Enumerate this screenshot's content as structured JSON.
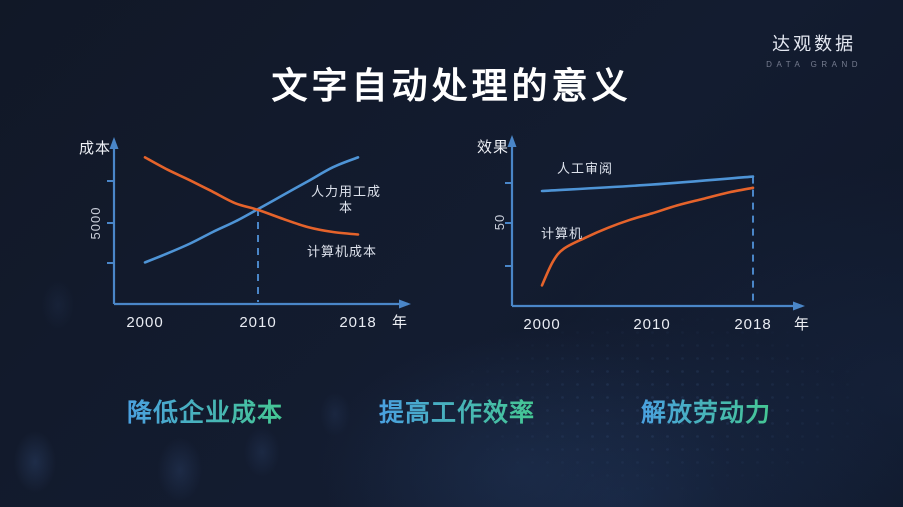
{
  "page": {
    "title": "文字自动处理的意义",
    "logo": {
      "name": "达观数据",
      "tagline": "DATA GRAND"
    },
    "benefits": [
      "降低企业成本",
      "提高工作效率",
      "解放劳动力"
    ],
    "colors": {
      "background": "#121a2c",
      "title": "#ffffff",
      "axis_blue": "#4a86c8",
      "line_blue": "#4e94d6",
      "line_orange": "#e5632b",
      "benefit_gradient_start": "#4aa0e0",
      "benefit_gradient_end": "#45c793",
      "tick_label": "#e9ecf3",
      "chart_label": "#dde2ec"
    }
  },
  "chart_data": [
    {
      "type": "line",
      "xlabel": "年",
      "ylabel": "成本",
      "x_tick_labels": [
        "2000",
        "2010",
        "2018"
      ],
      "y_tick_labels": [
        "5000"
      ],
      "x_range": [
        2000,
        2018
      ],
      "grid": false,
      "legend_position": "inline-annotations",
      "series": [
        {
          "name": "人力用工成本",
          "color": "#4e94d6",
          "x": [
            2000,
            2002,
            2004,
            2006,
            2008,
            2010,
            2012,
            2014,
            2016,
            2018
          ],
          "values": [
            2600,
            3150,
            3750,
            4450,
            5100,
            5850,
            6700,
            7550,
            8400,
            9000
          ]
        },
        {
          "name": "计算机成本",
          "color": "#e5632b",
          "x": [
            2000,
            2002,
            2004,
            2006,
            2008,
            2010,
            2012,
            2014,
            2016,
            2018
          ],
          "values": [
            9000,
            8250,
            7600,
            6900,
            6200,
            5800,
            5250,
            4750,
            4450,
            4300
          ]
        }
      ],
      "annotations": [
        {
          "type": "dashed-vline",
          "x": 2010,
          "to_value": 5850
        }
      ]
    },
    {
      "type": "line",
      "xlabel": "年",
      "ylabel": "效果",
      "x_tick_labels": [
        "2000",
        "2010",
        "2018"
      ],
      "y_tick_labels": [
        "50"
      ],
      "x_range": [
        2000,
        2018
      ],
      "grid": false,
      "legend_position": "inline-annotations",
      "series": [
        {
          "name": "人工审阅",
          "color": "#4e94d6",
          "x": [
            2000,
            2010,
            2018
          ],
          "values": [
            70,
            74,
            79
          ]
        },
        {
          "name": "计算机",
          "color": "#e5632b",
          "x": [
            2000,
            2001,
            2002,
            2004,
            2006,
            2008,
            2010,
            2012,
            2014,
            2016,
            2018
          ],
          "values": [
            11,
            26,
            34,
            41,
            47,
            52,
            56,
            61,
            65,
            69,
            72
          ]
        }
      ],
      "annotations": [
        {
          "type": "dashed-vline",
          "x": 2018,
          "to_value": 79
        }
      ]
    }
  ]
}
